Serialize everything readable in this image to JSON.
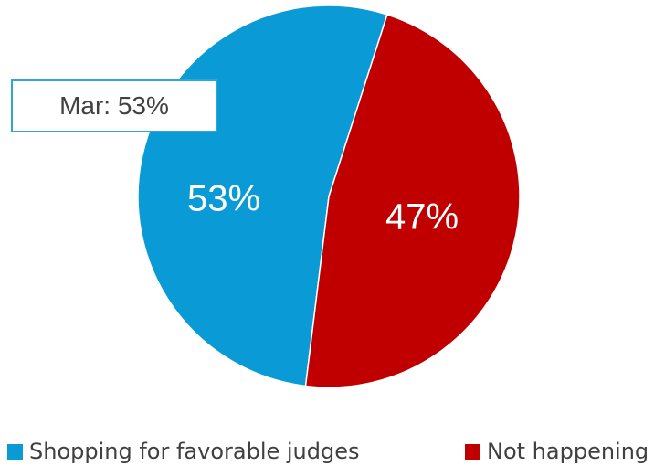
{
  "chart_data": {
    "type": "pie",
    "slices": [
      {
        "label": "Shopping for favorable judges",
        "value": 53,
        "display": "53%",
        "color": "#0a9bd6"
      },
      {
        "label": "Not happening",
        "value": 47,
        "display": "47%",
        "color": "#c00000"
      }
    ],
    "callout": "Mar: 53%",
    "legend_position": "bottom"
  }
}
